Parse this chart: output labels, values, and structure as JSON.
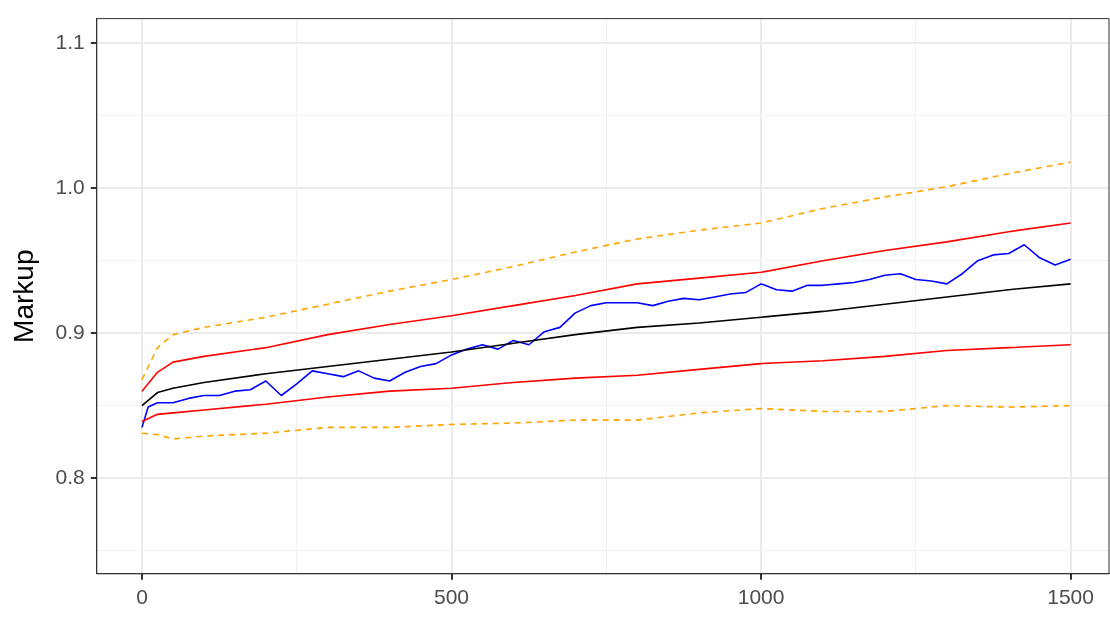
{
  "chart_data": {
    "type": "line",
    "ylabel": "Markup",
    "xlim": [
      -73,
      1562
    ],
    "ylim": [
      0.734,
      1.117
    ],
    "xticks": [
      0,
      {
        "value": 250,
        "label": null
      },
      500,
      {
        "value": 750,
        "label": null
      },
      1000,
      {
        "value": 1250,
        "label": null
      },
      1500
    ],
    "yticks": [
      {
        "value": 0.75,
        "label": null
      },
      0.8,
      {
        "value": 0.85,
        "label": null
      },
      0.9,
      {
        "value": 0.95,
        "label": null
      },
      {
        "value": 1,
        "label": "1.0"
      },
      {
        "value": 1.05,
        "label": null
      },
      1.1
    ],
    "grid": true,
    "legend": false,
    "marker": "none",
    "series": [
      {
        "color": "#ffa500",
        "line_style": "dashed",
        "x": [
          0,
          25,
          50,
          100,
          200,
          300,
          400,
          500,
          600,
          700,
          800,
          900,
          1000,
          1100,
          1200,
          1300,
          1400,
          1500
        ],
        "values": [
          0.868,
          0.89,
          0.899,
          0.904,
          0.911,
          0.92,
          0.929,
          0.937,
          0.946,
          0.956,
          0.965,
          0.971,
          0.976,
          0.986,
          0.994,
          1.001,
          1.01,
          1.018
        ]
      },
      {
        "color": "#ffa500",
        "line_style": "dashed",
        "x": [
          0,
          25,
          50,
          100,
          200,
          300,
          400,
          500,
          600,
          700,
          800,
          900,
          1000,
          1100,
          1200,
          1300,
          1400,
          1500
        ],
        "values": [
          0.831,
          0.83,
          0.827,
          0.829,
          0.831,
          0.835,
          0.835,
          0.837,
          0.838,
          0.84,
          0.84,
          0.845,
          0.848,
          0.846,
          0.846,
          0.85,
          0.849,
          0.85
        ]
      },
      {
        "color": "#ff0000",
        "line_style": "solid",
        "x": [
          0,
          25,
          50,
          100,
          200,
          300,
          400,
          500,
          600,
          700,
          800,
          900,
          1000,
          1100,
          1200,
          1300,
          1400,
          1500
        ],
        "values": [
          0.86,
          0.873,
          0.88,
          0.884,
          0.89,
          0.899,
          0.906,
          0.912,
          0.919,
          0.926,
          0.934,
          0.938,
          0.942,
          0.95,
          0.957,
          0.963,
          0.97,
          0.976
        ]
      },
      {
        "color": "#ff0000",
        "line_style": "solid",
        "x": [
          0,
          25,
          50,
          100,
          200,
          300,
          400,
          500,
          600,
          700,
          800,
          900,
          1000,
          1100,
          1200,
          1300,
          1400,
          1500
        ],
        "values": [
          0.839,
          0.844,
          0.845,
          0.847,
          0.851,
          0.856,
          0.86,
          0.862,
          0.866,
          0.869,
          0.871,
          0.875,
          0.879,
          0.881,
          0.884,
          0.888,
          0.89,
          0.892
        ]
      },
      {
        "color": "#000000",
        "line_style": "solid",
        "x": [
          0,
          25,
          50,
          100,
          200,
          300,
          400,
          500,
          600,
          700,
          800,
          900,
          1000,
          1100,
          1200,
          1300,
          1400,
          1500
        ],
        "values": [
          0.85,
          0.859,
          0.862,
          0.866,
          0.872,
          0.877,
          0.882,
          0.887,
          0.893,
          0.899,
          0.904,
          0.907,
          0.911,
          0.915,
          0.92,
          0.925,
          0.93,
          0.934
        ]
      },
      {
        "color": "#0000ff",
        "line_style": "solid",
        "x": [
          0,
          10,
          25,
          50,
          75,
          100,
          125,
          150,
          175,
          200,
          225,
          250,
          275,
          300,
          325,
          350,
          375,
          400,
          425,
          450,
          475,
          500,
          525,
          550,
          575,
          600,
          625,
          650,
          675,
          700,
          725,
          750,
          775,
          800,
          825,
          850,
          875,
          900,
          925,
          950,
          975,
          1000,
          1025,
          1050,
          1075,
          1100,
          1125,
          1150,
          1175,
          1200,
          1225,
          1250,
          1275,
          1300,
          1325,
          1350,
          1375,
          1400,
          1425,
          1450,
          1475,
          1500
        ],
        "values": [
          0.835,
          0.849,
          0.852,
          0.852,
          0.855,
          0.857,
          0.857,
          0.86,
          0.861,
          0.867,
          0.857,
          0.865,
          0.874,
          0.872,
          0.87,
          0.874,
          0.869,
          0.867,
          0.873,
          0.877,
          0.879,
          0.885,
          0.889,
          0.892,
          0.889,
          0.895,
          0.892,
          0.901,
          0.904,
          0.914,
          0.919,
          0.921,
          0.921,
          0.921,
          0.919,
          0.922,
          0.924,
          0.923,
          0.925,
          0.927,
          0.928,
          0.934,
          0.93,
          0.929,
          0.933,
          0.933,
          0.934,
          0.935,
          0.937,
          0.94,
          0.941,
          0.937,
          0.936,
          0.934,
          0.941,
          0.95,
          0.954,
          0.955,
          0.961,
          0.952,
          0.947,
          0.951
        ]
      }
    ]
  }
}
